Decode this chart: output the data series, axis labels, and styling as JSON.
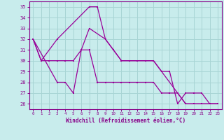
{
  "xlabel": "Windchill (Refroidissement éolien,°C)",
  "bg_color": "#c8ecec",
  "grid_color": "#a8d4d4",
  "line_color": "#990099",
  "ylim": [
    25.5,
    35.5
  ],
  "xlim": [
    -0.5,
    23.5
  ],
  "yticks": [
    26,
    27,
    28,
    29,
    30,
    31,
    32,
    33,
    34,
    35
  ],
  "xticks": [
    0,
    1,
    2,
    3,
    4,
    5,
    6,
    7,
    8,
    9,
    10,
    11,
    12,
    13,
    14,
    15,
    16,
    17,
    18,
    19,
    20,
    21,
    22,
    23
  ],
  "line1": {
    "x": [
      0,
      1,
      3,
      7,
      8,
      9,
      10,
      11,
      14,
      15,
      16,
      19,
      20,
      21,
      22,
      23
    ],
    "y": [
      32,
      30,
      32,
      35,
      35,
      32,
      31,
      30,
      30,
      30,
      29,
      26,
      26,
      26,
      26,
      26
    ]
  },
  "line2": {
    "x": [
      0,
      3,
      4,
      5,
      6,
      7,
      9,
      10,
      11,
      12,
      13,
      14,
      15,
      16,
      17,
      18,
      19,
      20,
      21,
      22,
      23
    ],
    "y": [
      32,
      28,
      28,
      27,
      31,
      33,
      32,
      31,
      30,
      30,
      30,
      30,
      30,
      29,
      29,
      26,
      27,
      27,
      27,
      26,
      26
    ]
  },
  "line3": {
    "x": [
      0,
      1,
      2,
      3,
      4,
      5,
      6,
      7,
      8,
      9,
      10,
      11,
      12,
      13,
      14,
      15,
      16,
      17,
      18,
      19,
      20,
      21,
      22,
      23
    ],
    "y": [
      32,
      30,
      30,
      30,
      30,
      30,
      31,
      31,
      28,
      28,
      28,
      28,
      28,
      28,
      28,
      28,
      27,
      27,
      27,
      26,
      26,
      26,
      26,
      26
    ]
  }
}
